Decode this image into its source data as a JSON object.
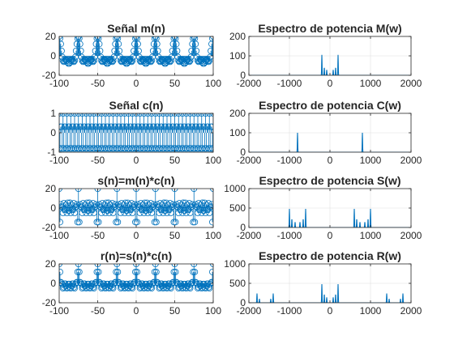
{
  "chart_data": [
    {
      "type": "stem",
      "title": "Señal m(n)",
      "xlim": [
        -100,
        100
      ],
      "ylim": [
        -20,
        20
      ],
      "xticks": [
        -100,
        -50,
        0,
        50,
        100
      ],
      "yticks": [
        -20,
        0,
        20
      ],
      "xtick_labels": [
        "-100",
        "-50",
        "0",
        "50",
        "100"
      ],
      "ytick_labels": [
        "-20",
        "0",
        "20"
      ],
      "series": [
        {
          "signal": "sum of sinusoids",
          "n_range": [
            -100,
            100
          ],
          "components": [
            {
              "amp": 10,
              "period": 25
            },
            {
              "amp": 6,
              "period": 12.5
            },
            {
              "amp": 4,
              "period": 8.333
            }
          ],
          "marker": "circle",
          "color": "#0072BD"
        }
      ]
    },
    {
      "type": "line",
      "title": "Espectro de potencia M(w)",
      "xlim": [
        -2000,
        2000
      ],
      "ylim": [
        0,
        200
      ],
      "xticks": [
        -2000,
        -1000,
        0,
        1000,
        2000
      ],
      "yticks": [
        0,
        100,
        200
      ],
      "xtick_labels": [
        "-2000",
        "-1000",
        "0",
        "1000",
        "2000"
      ],
      "ytick_labels": [
        "0",
        "100",
        "200"
      ],
      "series": [
        {
          "peaks": [
            {
              "x": -200,
              "y": 105
            },
            {
              "x": -140,
              "y": 40
            },
            {
              "x": -80,
              "y": 28
            },
            {
              "x": 80,
              "y": 28
            },
            {
              "x": 140,
              "y": 40
            },
            {
              "x": 200,
              "y": 105
            }
          ],
          "color": "#0072BD"
        }
      ]
    },
    {
      "type": "stem",
      "title": "Señal c(n)",
      "xlim": [
        -100,
        100
      ],
      "ylim": [
        -1,
        1
      ],
      "xticks": [
        -100,
        -50,
        0,
        50,
        100
      ],
      "yticks": [
        -1,
        0,
        1
      ],
      "xtick_labels": [
        "-100",
        "-50",
        "0",
        "50",
        "100"
      ],
      "ytick_labels": [
        "-1",
        "0",
        "1"
      ],
      "series": [
        {
          "signal": "cosine",
          "n_range": [
            -100,
            100
          ],
          "components": [
            {
              "amp": 1,
              "period": 2.5
            }
          ],
          "marker": "circle",
          "color": "#0072BD"
        }
      ]
    },
    {
      "type": "line",
      "title": "Espectro de potencia C(w)",
      "xlim": [
        -2000,
        2000
      ],
      "ylim": [
        0,
        200
      ],
      "xticks": [
        -2000,
        -1000,
        0,
        1000,
        2000
      ],
      "yticks": [
        0,
        100,
        200
      ],
      "xtick_labels": [
        "-2000",
        "-1000",
        "0",
        "1000",
        "2000"
      ],
      "ytick_labels": [
        "0",
        "100",
        "200"
      ],
      "series": [
        {
          "peaks": [
            {
              "x": -800,
              "y": 100
            },
            {
              "x": 800,
              "y": 100
            }
          ],
          "color": "#0072BD"
        }
      ]
    },
    {
      "type": "stem",
      "title": "s(n)=m(n)*c(n)",
      "xlim": [
        -100,
        100
      ],
      "ylim": [
        -20,
        20
      ],
      "xticks": [
        -100,
        -50,
        0,
        50,
        100
      ],
      "yticks": [
        -20,
        0,
        20
      ],
      "xtick_labels": [
        "-100",
        "-50",
        "0",
        "50",
        "100"
      ],
      "ytick_labels": [
        "-20",
        "0",
        "20"
      ],
      "series": [
        {
          "signal": "product",
          "factors": [
            0,
            2
          ],
          "n_range": [
            -100,
            100
          ],
          "marker": "circle",
          "color": "#0072BD"
        }
      ]
    },
    {
      "type": "line",
      "title": "Espectro de potencia S(w)",
      "xlim": [
        -2000,
        2000
      ],
      "ylim": [
        0,
        1000
      ],
      "xticks": [
        -2000,
        -1000,
        0,
        1000,
        2000
      ],
      "yticks": [
        0,
        500,
        1000
      ],
      "xtick_labels": [
        "-2000",
        "-1000",
        "0",
        "1000",
        "2000"
      ],
      "ytick_labels": [
        "0",
        "500",
        "1000"
      ],
      "series": [
        {
          "peaks": [
            {
              "x": -1000,
              "y": 480
            },
            {
              "x": -940,
              "y": 220
            },
            {
              "x": -860,
              "y": 140
            },
            {
              "x": -740,
              "y": 140
            },
            {
              "x": -660,
              "y": 220
            },
            {
              "x": -600,
              "y": 480
            },
            {
              "x": 600,
              "y": 480
            },
            {
              "x": 660,
              "y": 220
            },
            {
              "x": 740,
              "y": 140
            },
            {
              "x": 860,
              "y": 140
            },
            {
              "x": 940,
              "y": 220
            },
            {
              "x": 1000,
              "y": 480
            }
          ],
          "color": "#0072BD"
        }
      ]
    },
    {
      "type": "stem",
      "title": "r(n)=s(n)*c(n)",
      "xlim": [
        -100,
        100
      ],
      "ylim": [
        -20,
        20
      ],
      "xticks": [
        -100,
        -50,
        0,
        50,
        100
      ],
      "yticks": [
        -20,
        0,
        20
      ],
      "xtick_labels": [
        "-100",
        "-50",
        "0",
        "50",
        "100"
      ],
      "ytick_labels": [
        "-20",
        "0",
        "20"
      ],
      "series": [
        {
          "signal": "product",
          "factors": [
            4,
            2
          ],
          "n_range": [
            -100,
            100
          ],
          "marker": "circle",
          "color": "#0072BD"
        }
      ]
    },
    {
      "type": "line",
      "title": "Espectro de potencia R(w)",
      "xlim": [
        -2000,
        2000
      ],
      "ylim": [
        0,
        1000
      ],
      "xticks": [
        -2000,
        -1000,
        0,
        1000,
        2000
      ],
      "yticks": [
        0,
        500,
        1000
      ],
      "xtick_labels": [
        "-2000",
        "-1000",
        "0",
        "1000",
        "2000"
      ],
      "ytick_labels": [
        "0",
        "500",
        "1000"
      ],
      "series": [
        {
          "peaks": [
            {
              "x": -1800,
              "y": 240
            },
            {
              "x": -1740,
              "y": 100
            },
            {
              "x": -1460,
              "y": 100
            },
            {
              "x": -1400,
              "y": 240
            },
            {
              "x": -200,
              "y": 480
            },
            {
              "x": -140,
              "y": 220
            },
            {
              "x": -80,
              "y": 140
            },
            {
              "x": 80,
              "y": 140
            },
            {
              "x": 140,
              "y": 220
            },
            {
              "x": 200,
              "y": 480
            },
            {
              "x": 1400,
              "y": 240
            },
            {
              "x": 1460,
              "y": 100
            },
            {
              "x": 1740,
              "y": 100
            },
            {
              "x": 1800,
              "y": 240
            }
          ],
          "color": "#0072BD"
        }
      ]
    }
  ]
}
